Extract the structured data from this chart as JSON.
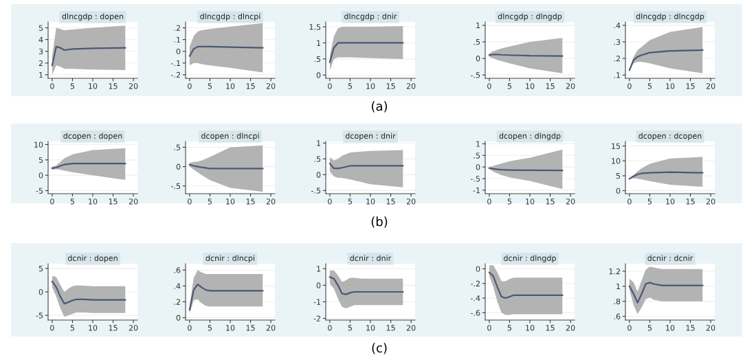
{
  "chart_data": [
    {
      "type": "line",
      "title": "dlncgdp : dopen",
      "xlim": [
        -1,
        21
      ],
      "xticks": [
        0,
        5,
        10,
        15,
        20
      ],
      "ylim": [
        0.7,
        5.5
      ],
      "yticks": [
        1,
        2,
        3,
        4,
        5
      ],
      "grid": "y",
      "x": [
        0,
        1,
        2,
        3,
        5,
        10,
        18
      ],
      "series": [
        {
          "color": "#4a5878",
          "values": [
            1.8,
            3.4,
            3.3,
            3.1,
            3.2,
            3.25,
            3.3
          ],
          "lower": [
            1.0,
            1.8,
            1.7,
            1.5,
            1.5,
            1.45,
            1.4
          ],
          "upper": [
            2.6,
            5.0,
            4.9,
            4.8,
            4.85,
            5.0,
            5.2
          ]
        }
      ]
    },
    {
      "type": "line",
      "title": "dlncgdp : dlncpi",
      "xlim": [
        -1,
        21
      ],
      "xticks": [
        0,
        5,
        10,
        15,
        20
      ],
      "ylim": [
        -0.23,
        0.25
      ],
      "yticks": [
        {
          "value": -0.2,
          "label": "-.2"
        },
        {
          "value": -0.1,
          "label": "-.1"
        },
        0,
        {
          "value": 0.1,
          "label": ".1"
        },
        {
          "value": 0.2,
          "label": ".2"
        }
      ],
      "grid": "y",
      "x": [
        0,
        1,
        2,
        3,
        5,
        10,
        18
      ],
      "series": [
        {
          "color": "#4a5878",
          "values": [
            -0.04,
            0.02,
            0.04,
            0.04,
            0.04,
            0.035,
            0.03
          ],
          "lower": [
            -0.12,
            -0.1,
            -0.1,
            -0.11,
            -0.12,
            -0.14,
            -0.18
          ],
          "upper": [
            0.04,
            0.13,
            0.17,
            0.18,
            0.19,
            0.21,
            0.24
          ]
        }
      ]
    },
    {
      "type": "line",
      "title": "dlncgdp : dnir",
      "annotations": [
        "(a)"
      ],
      "xlim": [
        -1,
        21
      ],
      "xticks": [
        0,
        5,
        10,
        15,
        20
      ],
      "ylim": [
        -0.1,
        1.65
      ],
      "yticks": [
        0,
        {
          "value": 0.5,
          "label": ".5"
        },
        1,
        1.5
      ],
      "grid": "y",
      "x": [
        0,
        1,
        2,
        3,
        5,
        10,
        18
      ],
      "series": [
        {
          "color": "#4a5878",
          "values": [
            0.4,
            0.85,
            1.0,
            1.0,
            1.0,
            1.0,
            1.0
          ],
          "lower": [
            0.15,
            0.5,
            0.55,
            0.55,
            0.55,
            0.53,
            0.5
          ],
          "upper": [
            0.6,
            1.2,
            1.45,
            1.5,
            1.5,
            1.5,
            1.52
          ]
        }
      ]
    },
    {
      "type": "line",
      "title": "dlncgdp : dlngdp",
      "xlim": [
        -1,
        21
      ],
      "xticks": [
        0,
        5,
        10,
        15,
        20
      ],
      "ylim": [
        -0.6,
        1.1
      ],
      "yticks": [
        {
          "value": -0.5,
          "label": "-.5"
        },
        0,
        {
          "value": 0.5,
          "label": ".5"
        },
        1
      ],
      "grid": "y",
      "x": [
        0,
        1,
        2,
        3,
        5,
        10,
        18
      ],
      "series": [
        {
          "color": "#4a5878",
          "values": [
            0.1,
            0.12,
            0.12,
            0.11,
            0.1,
            0.08,
            0.07
          ],
          "lower": [
            0.05,
            0.0,
            -0.05,
            -0.08,
            -0.15,
            -0.3,
            -0.45
          ],
          "upper": [
            0.15,
            0.22,
            0.26,
            0.3,
            0.36,
            0.5,
            0.62
          ]
        }
      ]
    },
    {
      "type": "line",
      "title": "dlncgdp : dlncgdp",
      "xlim": [
        -1,
        21
      ],
      "xticks": [
        0,
        5,
        10,
        15,
        20
      ],
      "ylim": [
        0.08,
        0.42
      ],
      "yticks": [
        {
          "value": 0.1,
          "label": ".1"
        },
        {
          "value": 0.2,
          "label": ".2"
        },
        {
          "value": 0.3,
          "label": ".3"
        },
        {
          "value": 0.4,
          "label": ".4"
        }
      ],
      "grid": "y",
      "x": [
        0,
        1,
        2,
        3,
        5,
        10,
        18
      ],
      "series": [
        {
          "color": "#4a5878",
          "values": [
            0.13,
            0.19,
            0.21,
            0.22,
            0.235,
            0.245,
            0.25
          ],
          "lower": [
            0.13,
            0.17,
            0.18,
            0.18,
            0.17,
            0.14,
            0.11
          ],
          "upper": [
            0.13,
            0.21,
            0.25,
            0.27,
            0.31,
            0.36,
            0.39
          ]
        }
      ]
    },
    {
      "type": "line",
      "title": "dcopen : dopen",
      "xlim": [
        -1,
        21
      ],
      "xticks": [
        0,
        5,
        10,
        15,
        20
      ],
      "ylim": [
        -6,
        11
      ],
      "yticks": [
        -5,
        0,
        5,
        10
      ],
      "grid": "y",
      "x": [
        0,
        1,
        2,
        3,
        5,
        10,
        18
      ],
      "series": [
        {
          "color": "#4a5878",
          "values": [
            2.3,
            2.5,
            3,
            3.5,
            3.8,
            3.8,
            3.8
          ],
          "lower": [
            1.8,
            2,
            1.8,
            1.5,
            1,
            0,
            -1.5
          ],
          "upper": [
            2.8,
            3.2,
            4.3,
            5.5,
            6.8,
            8.2,
            8.8
          ]
        }
      ]
    },
    {
      "type": "line",
      "title": "dcopen : dlncpi",
      "xlim": [
        -1,
        21
      ],
      "xticks": [
        0,
        5,
        10,
        15,
        20
      ],
      "ylim": [
        -0.7,
        0.65
      ],
      "yticks": [
        {
          "value": -0.5,
          "label": "-.5"
        },
        0,
        {
          "value": 0.5,
          "label": ".5"
        }
      ],
      "grid": "y",
      "x": [
        0,
        1,
        2,
        3,
        5,
        10,
        18
      ],
      "series": [
        {
          "color": "#4a5878",
          "values": [
            0.05,
            0.02,
            0,
            -0.02,
            -0.05,
            -0.05,
            -0.05
          ],
          "lower": [
            0,
            -0.08,
            -0.15,
            -0.22,
            -0.35,
            -0.55,
            -0.65
          ],
          "upper": [
            0.1,
            0.12,
            0.13,
            0.16,
            0.25,
            0.5,
            0.55
          ]
        }
      ]
    },
    {
      "type": "line",
      "title": "dcopen : dnir",
      "annotations": [
        "(b)"
      ],
      "xlim": [
        -1,
        21
      ],
      "xticks": [
        0,
        5,
        10,
        15,
        20
      ],
      "ylim": [
        -0.6,
        1.05
      ],
      "yticks": [
        {
          "value": -0.5,
          "label": "-.5"
        },
        0,
        {
          "value": 0.5,
          "label": ".5"
        },
        1
      ],
      "grid": "y",
      "x": [
        0,
        1,
        2,
        3,
        5,
        10,
        18
      ],
      "series": [
        {
          "color": "#4a5878",
          "values": [
            0.35,
            0.2,
            0.2,
            0.22,
            0.28,
            0.28,
            0.28
          ],
          "lower": [
            0.1,
            -0.05,
            -0.1,
            -0.1,
            -0.15,
            -0.3,
            -0.4
          ],
          "upper": [
            0.55,
            0.45,
            0.5,
            0.6,
            0.7,
            0.75,
            0.78
          ]
        }
      ]
    },
    {
      "type": "line",
      "title": "dcopen : dlngdp",
      "xlim": [
        -1,
        21
      ],
      "xticks": [
        0,
        5,
        10,
        15,
        20
      ],
      "ylim": [
        -1.15,
        1.1
      ],
      "yticks": [
        -1,
        {
          "value": -0.5,
          "label": "-.5"
        },
        0,
        {
          "value": 0.5,
          "label": ".5"
        },
        1
      ],
      "grid": "y",
      "x": [
        0,
        1,
        2,
        3,
        5,
        10,
        18
      ],
      "series": [
        {
          "color": "#4a5878",
          "values": [
            -0.05,
            -0.08,
            -0.1,
            -0.12,
            -0.13,
            -0.14,
            -0.15
          ],
          "lower": [
            -0.08,
            -0.2,
            -0.28,
            -0.35,
            -0.45,
            -0.6,
            -0.95
          ],
          "upper": [
            0,
            0.05,
            0.1,
            0.15,
            0.25,
            0.4,
            0.75
          ]
        }
      ]
    },
    {
      "type": "line",
      "title": "dcopen : dcopen",
      "xlim": [
        -1,
        21
      ],
      "xticks": [
        0,
        5,
        10,
        15,
        20
      ],
      "ylim": [
        -1,
        16.5
      ],
      "yticks": [
        0,
        5,
        10,
        15
      ],
      "grid": "y",
      "x": [
        0,
        1,
        2,
        3,
        5,
        10,
        18
      ],
      "series": [
        {
          "color": "#4a5878",
          "values": [
            4,
            4.8,
            5.5,
            5.8,
            6,
            6.2,
            6
          ],
          "lower": [
            4,
            4.2,
            4,
            3.8,
            3.2,
            2,
            1.3
          ],
          "upper": [
            4,
            5.3,
            6.5,
            7.5,
            9,
            10.8,
            11.3
          ]
        }
      ]
    },
    {
      "type": "line",
      "title": "dcnir : dopen",
      "xlim": [
        -1,
        21
      ],
      "xticks": [
        0,
        5,
        10,
        15,
        20
      ],
      "ylim": [
        -6,
        6
      ],
      "yticks": [
        -5,
        0,
        5
      ],
      "grid": "y",
      "x": [
        0,
        1,
        2,
        3,
        4,
        5,
        6,
        8,
        10,
        18
      ],
      "series": [
        {
          "color": "#4a5878",
          "values": [
            2.2,
            1,
            -1,
            -2.5,
            -2.2,
            -1.8,
            -1.6,
            -1.6,
            -1.7,
            -1.7
          ],
          "lower": [
            1,
            -1,
            -3.5,
            -5.3,
            -5,
            -4.7,
            -4.4,
            -4.4,
            -4.5,
            -4.5
          ],
          "upper": [
            3.4,
            3.2,
            1.5,
            0,
            0.7,
            1.2,
            1.4,
            1.3,
            1.2,
            1.2
          ]
        }
      ]
    },
    {
      "type": "line",
      "title": "dcnir : dlncpi",
      "xlim": [
        -1,
        21
      ],
      "xticks": [
        0,
        5,
        10,
        15,
        20
      ],
      "ylim": [
        -0.03,
        0.68
      ],
      "yticks": [
        0,
        {
          "value": 0.2,
          "label": ".2"
        },
        {
          "value": 0.4,
          "label": ".4"
        },
        {
          "value": 0.6,
          "label": ".6"
        }
      ],
      "grid": "y",
      "x": [
        0,
        1,
        2,
        3,
        4,
        5,
        6,
        8,
        10,
        18
      ],
      "series": [
        {
          "color": "#4a5878",
          "values": [
            0.1,
            0.35,
            0.42,
            0.38,
            0.35,
            0.34,
            0.34,
            0.34,
            0.34,
            0.34
          ],
          "lower": [
            0.05,
            0.22,
            0.23,
            0.18,
            0.15,
            0.14,
            0.14,
            0.14,
            0.14,
            0.14
          ],
          "upper": [
            0.15,
            0.5,
            0.6,
            0.57,
            0.55,
            0.55,
            0.55,
            0.55,
            0.55,
            0.55
          ]
        }
      ]
    },
    {
      "type": "line",
      "title": "dcnir : dnir",
      "annotations": [
        "(c)"
      ],
      "xlim": [
        -1,
        21
      ],
      "xticks": [
        0,
        5,
        10,
        15,
        20
      ],
      "ylim": [
        -2.1,
        1.3
      ],
      "yticks": [
        -2,
        -1,
        0,
        1
      ],
      "grid": "y",
      "x": [
        0,
        1,
        2,
        3,
        4,
        5,
        6,
        8,
        10,
        18
      ],
      "series": [
        {
          "color": "#4a5878",
          "values": [
            0.5,
            0.4,
            0,
            -0.5,
            -0.55,
            -0.45,
            -0.4,
            -0.4,
            -0.4,
            -0.4
          ],
          "lower": [
            0.1,
            -0.2,
            -0.8,
            -1.3,
            -1.4,
            -1.3,
            -1.2,
            -1.2,
            -1.2,
            -1.2
          ],
          "upper": [
            0.9,
            0.9,
            0.6,
            0.2,
            0.3,
            0.45,
            0.45,
            0.4,
            0.4,
            0.4
          ]
        }
      ]
    },
    {
      "type": "line",
      "title": "dcnir : dlngdp",
      "xlim": [
        -1,
        21
      ],
      "xticks": [
        0,
        5,
        10,
        15,
        20
      ],
      "ylim": [
        -0.7,
        0.07
      ],
      "yticks": [
        {
          "value": -0.6,
          "label": "-.6"
        },
        {
          "value": -0.4,
          "label": "-.4"
        },
        {
          "value": -0.2,
          "label": "-.2"
        },
        0
      ],
      "grid": "y",
      "x": [
        0,
        1,
        2,
        3,
        4,
        5,
        6,
        8,
        10,
        18
      ],
      "series": [
        {
          "color": "#4a5878",
          "values": [
            -0.05,
            -0.1,
            -0.25,
            -0.38,
            -0.4,
            -0.38,
            -0.36,
            -0.36,
            -0.36,
            -0.36
          ],
          "lower": [
            -0.1,
            -0.25,
            -0.45,
            -0.6,
            -0.63,
            -0.63,
            -0.62,
            -0.62,
            -0.62,
            -0.62
          ],
          "upper": [
            0.05,
            0.05,
            -0.05,
            -0.17,
            -0.17,
            -0.14,
            -0.12,
            -0.12,
            -0.12,
            -0.12
          ]
        }
      ]
    },
    {
      "type": "line",
      "title": "dcnir : dcnir",
      "xlim": [
        -1,
        21
      ],
      "xticks": [
        0,
        5,
        10,
        15,
        20
      ],
      "ylim": [
        0.55,
        1.3
      ],
      "yticks": [
        {
          "value": 0.6,
          "label": ".6"
        },
        {
          "value": 0.8,
          "label": ".8"
        },
        1,
        1.2
      ],
      "grid": "y",
      "x": [
        0,
        1,
        2,
        3,
        4,
        5,
        6,
        8,
        10,
        18
      ],
      "series": [
        {
          "color": "#4a5878",
          "values": [
            1,
            0.9,
            0.78,
            0.9,
            1.03,
            1.05,
            1.03,
            1.01,
            1.01,
            1.01
          ],
          "lower": [
            0.95,
            0.75,
            0.63,
            0.72,
            0.83,
            0.85,
            0.82,
            0.8,
            0.8,
            0.8
          ],
          "upper": [
            1.1,
            1.05,
            0.93,
            1.08,
            1.22,
            1.26,
            1.25,
            1.23,
            1.23,
            1.23
          ]
        }
      ]
    }
  ]
}
